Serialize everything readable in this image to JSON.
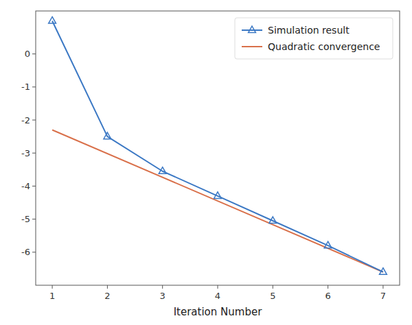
{
  "chart_data": {
    "type": "line",
    "xlabel": "Iteration Number",
    "series": [
      {
        "name": "Simulation result",
        "color": "#3b78c4",
        "marker": "triangle",
        "x": [
          1,
          2,
          3,
          4,
          5,
          6,
          7
        ],
        "values": [
          1.0,
          -2.5,
          -3.55,
          -4.3,
          -5.05,
          -5.8,
          -6.6
        ]
      },
      {
        "name": "Quadratic convergence",
        "color": "#d9704a",
        "x": [
          1,
          7
        ],
        "values": [
          -2.3,
          -6.6
        ]
      }
    ],
    "xlim": [
      0.7,
      7.3
    ],
    "ylim": [
      -7.0,
      1.3
    ],
    "xticks": [
      1,
      2,
      3,
      4,
      5,
      6,
      7
    ],
    "yticks": [
      0,
      -1,
      -2,
      -3,
      -4,
      -5,
      -6
    ],
    "grid": false,
    "legend": "upper right"
  }
}
